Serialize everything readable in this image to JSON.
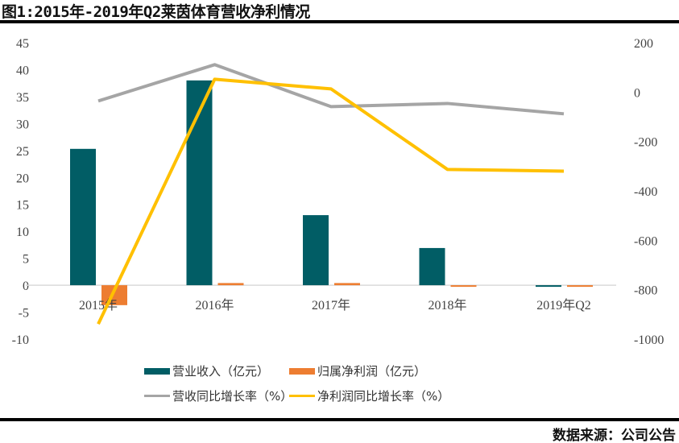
{
  "title": "图1:2015年-2019年Q2莱茵体育营收净利情况",
  "source": "数据来源：公司公告",
  "chart_data": {
    "type": "bar+line",
    "categories": [
      "2015年",
      "2016年",
      "2017年",
      "2018年",
      "2019年Q2"
    ],
    "left_axis": {
      "ylim": [
        -10,
        45
      ],
      "ticks": [
        "45",
        "40",
        "35",
        "30",
        "25",
        "20",
        "15",
        "10",
        "5",
        "0",
        "-5",
        "-10"
      ]
    },
    "right_axis": {
      "ylim": [
        -1000,
        200
      ],
      "ticks": [
        "200",
        "0",
        "-200",
        "-400",
        "-600",
        "-800",
        "-1000"
      ]
    },
    "grid": false,
    "legend_position": "bottom",
    "series": [
      {
        "name": "营业收入（亿元）",
        "type": "bar",
        "axis": "left",
        "color": "#015D65",
        "values": [
          25.3,
          38.0,
          13.0,
          6.9,
          -0.3
        ]
      },
      {
        "name": "归属净利润（亿元）",
        "type": "bar",
        "axis": "left",
        "color": "#ED7D31",
        "values": [
          -3.7,
          0.4,
          0.4,
          -0.3,
          -0.3
        ]
      },
      {
        "name": "营收同比增长率（%）",
        "type": "line",
        "axis": "right",
        "color": "#A5A5A5",
        "values": [
          -36,
          111,
          -59,
          -46,
          -88
        ]
      },
      {
        "name": "净利润同比增长率（%）",
        "type": "line",
        "axis": "right",
        "color": "#FFC000",
        "values": [
          -939,
          52,
          13,
          -313,
          -320
        ]
      }
    ]
  }
}
